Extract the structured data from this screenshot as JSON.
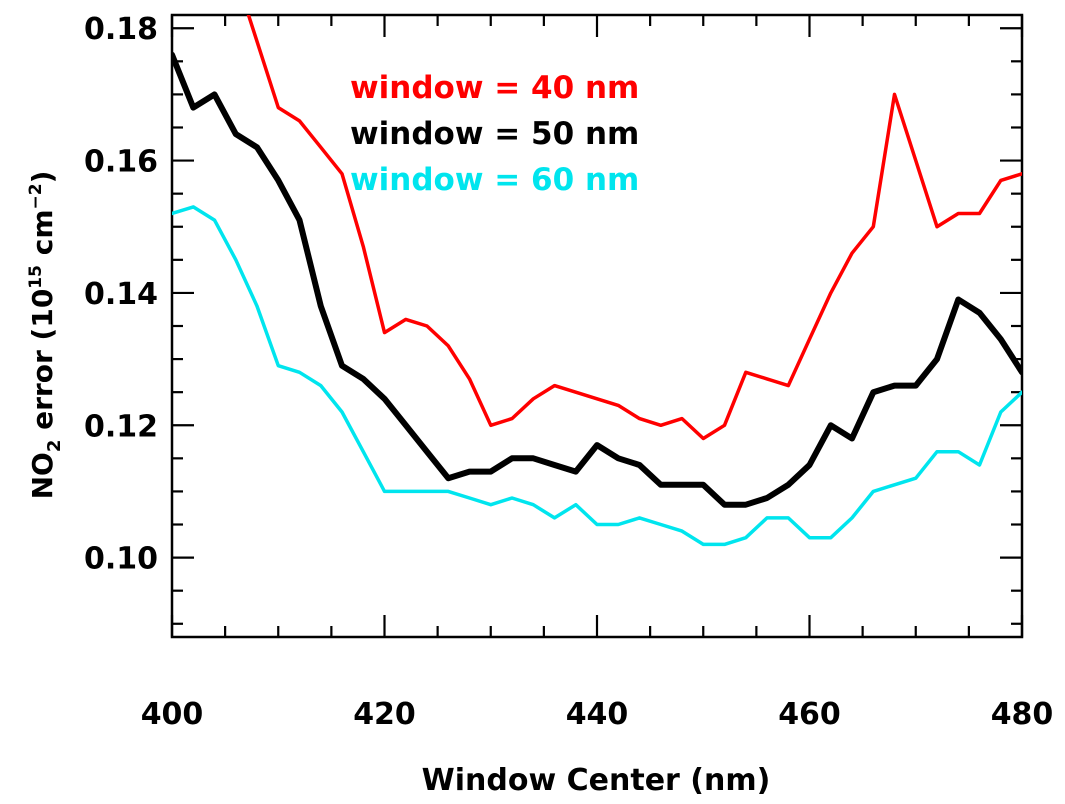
{
  "chart_data": {
    "type": "line",
    "title": "",
    "xlabel": "Window Center (nm)",
    "ylabel": {
      "main": "NO",
      "sub": "2",
      "mid": " error (10",
      "sup1": "15",
      "mid2": " cm",
      "sup2": "−2",
      "end": ")"
    },
    "xlim": [
      400,
      480
    ],
    "ylim": [
      0.088,
      0.182
    ],
    "xticks": [
      400,
      420,
      440,
      460,
      480
    ],
    "xtick_labels": [
      "400",
      "420",
      "440",
      "460",
      "480"
    ],
    "yticks": [
      0.1,
      0.12,
      0.14,
      0.16,
      0.18
    ],
    "ytick_labels": [
      "0.10",
      "0.12",
      "0.14",
      "0.16",
      "0.18"
    ],
    "grid": false,
    "legend_placement": "top-left",
    "series": [
      {
        "name": "window = 40 nm",
        "color": "#ff0000",
        "stroke": "normal",
        "x": [
          407.2,
          410,
          412,
          414,
          416,
          418,
          420,
          422,
          424,
          426,
          428,
          430,
          432,
          434,
          436,
          438,
          440,
          442,
          444,
          446,
          448,
          450,
          452,
          454,
          456,
          458,
          460,
          462,
          464,
          466,
          468,
          470,
          472,
          474,
          476,
          478,
          480
        ],
        "values": [
          0.182,
          0.168,
          0.166,
          0.162,
          0.158,
          0.147,
          0.134,
          0.136,
          0.135,
          0.132,
          0.127,
          0.12,
          0.121,
          0.124,
          0.126,
          0.125,
          0.124,
          0.123,
          0.121,
          0.12,
          0.121,
          0.118,
          0.12,
          0.128,
          0.127,
          0.126,
          0.133,
          0.14,
          0.146,
          0.15,
          0.17,
          0.16,
          0.15,
          0.152,
          0.152,
          0.157,
          0.158
        ]
      },
      {
        "name": "window = 50 nm",
        "color": "#000000",
        "stroke": "thick",
        "x": [
          400,
          402,
          404,
          406,
          408,
          410,
          412,
          414,
          416,
          418,
          420,
          422,
          424,
          426,
          428,
          430,
          432,
          434,
          436,
          438,
          440,
          442,
          444,
          446,
          448,
          450,
          452,
          454,
          456,
          458,
          460,
          462,
          464,
          466,
          468,
          470,
          472,
          474,
          476,
          478,
          480
        ],
        "values": [
          0.176,
          0.168,
          0.17,
          0.164,
          0.162,
          0.157,
          0.151,
          0.138,
          0.129,
          0.127,
          0.124,
          0.12,
          0.116,
          0.112,
          0.113,
          0.113,
          0.115,
          0.115,
          0.114,
          0.113,
          0.117,
          0.115,
          0.114,
          0.111,
          0.111,
          0.111,
          0.108,
          0.108,
          0.109,
          0.111,
          0.114,
          0.12,
          0.118,
          0.125,
          0.126,
          0.126,
          0.13,
          0.139,
          0.137,
          0.133,
          0.128
        ]
      },
      {
        "name": "window = 60 nm",
        "color": "#00e5ee",
        "stroke": "normal",
        "x": [
          400,
          402,
          404,
          406,
          408,
          410,
          412,
          414,
          416,
          418,
          420,
          422,
          424,
          426,
          428,
          430,
          432,
          434,
          436,
          438,
          440,
          442,
          444,
          446,
          448,
          450,
          452,
          454,
          456,
          458,
          460,
          462,
          464,
          466,
          468,
          470,
          472,
          474,
          476,
          478,
          480
        ],
        "values": [
          0.152,
          0.153,
          0.151,
          0.145,
          0.138,
          0.129,
          0.128,
          0.126,
          0.122,
          0.116,
          0.11,
          0.11,
          0.11,
          0.11,
          0.109,
          0.108,
          0.109,
          0.108,
          0.106,
          0.108,
          0.105,
          0.105,
          0.106,
          0.105,
          0.104,
          0.102,
          0.102,
          0.103,
          0.106,
          0.106,
          0.103,
          0.103,
          0.106,
          0.11,
          0.111,
          0.112,
          0.116,
          0.116,
          0.114,
          0.122,
          0.125
        ]
      }
    ]
  }
}
